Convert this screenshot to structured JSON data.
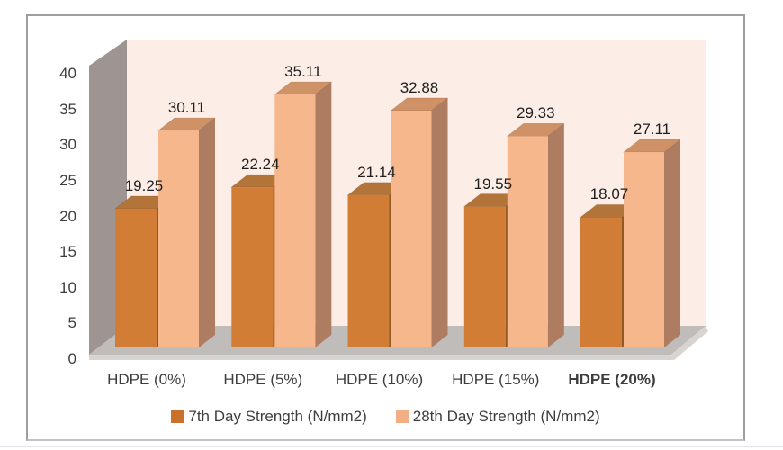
{
  "chart_data": {
    "type": "bar",
    "variant": "3d-clustered-column",
    "title": "",
    "xlabel": "",
    "ylabel": "",
    "categories": [
      "HDPE (0%)",
      "HDPE (5%)",
      "HDPE (10%)",
      "HDPE (15%)",
      "HDPE (20%)"
    ],
    "emphasized_category": "HDPE (20%)",
    "series": [
      {
        "name": "7th Day Strength (N/mm2)",
        "values": [
          19.25,
          22.24,
          21.14,
          19.55,
          18.07
        ],
        "color_front": "#D17D35",
        "color_top": "#B3743A",
        "color_side": "#8F5A26",
        "legend_swatch": "#C9702B"
      },
      {
        "name": "28th Day Strength (N/mm2)",
        "values": [
          30.11,
          35.11,
          32.88,
          29.33,
          27.11
        ],
        "color_front": "#F7B78D",
        "color_top": "#CF9166",
        "color_side": "#AE7C61",
        "legend_swatch": "#F2AF85"
      }
    ],
    "y_axis": {
      "min": 0,
      "max": 40,
      "step": 5
    },
    "ylim": [
      0,
      40
    ],
    "data_labels": true,
    "data_label_format": "0.00",
    "legend_position": "bottom",
    "grid": false,
    "colors": {
      "plot_background": "#FCEEE7",
      "wall": "#9E9592",
      "floor": "#C0BCBA",
      "floor_bevel": "#D7D4D2",
      "frame_border": "#9E9E9E",
      "axis_text": "#3D3D3D",
      "data_label_text": "#202020"
    }
  }
}
